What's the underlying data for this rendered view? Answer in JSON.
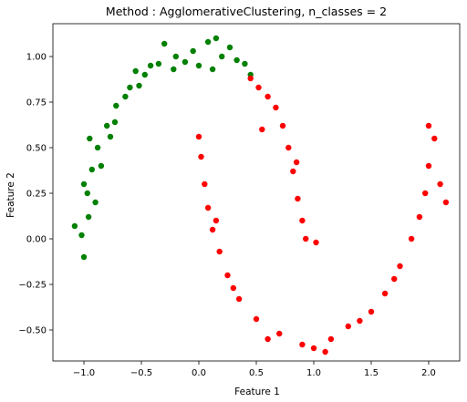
{
  "chart_data": {
    "type": "scatter",
    "title": "Method : AgglomerativeClustering, n_classes = 2",
    "xlabel": "Feature 1",
    "ylabel": "Feature 2",
    "xlim": [
      -1.27,
      2.27
    ],
    "ylim": [
      -0.67,
      1.18
    ],
    "xticks": [
      -1.0,
      -0.5,
      0.0,
      0.5,
      1.0,
      1.5,
      2.0
    ],
    "xtick_labels": [
      "−1.0",
      "−0.5",
      "0.0",
      "0.5",
      "1.0",
      "1.5",
      "2.0"
    ],
    "yticks": [
      -0.5,
      -0.25,
      0.0,
      0.25,
      0.5,
      0.75,
      1.0
    ],
    "ytick_labels": [
      "−0.50",
      "−0.25",
      "0.00",
      "0.25",
      "0.50",
      "0.75",
      "1.00"
    ],
    "grid": false,
    "legend": "none",
    "series": [
      {
        "color": "#008000",
        "points": [
          [
            -1.0,
            -0.1
          ],
          [
            -1.02,
            0.02
          ],
          [
            -0.96,
            0.12
          ],
          [
            -0.97,
            0.25
          ],
          [
            -0.93,
            0.38
          ],
          [
            -0.88,
            0.5
          ],
          [
            -0.8,
            0.62
          ],
          [
            -0.72,
            0.73
          ],
          [
            -0.6,
            0.83
          ],
          [
            -0.47,
            0.9
          ],
          [
            -0.35,
            0.96
          ],
          [
            -0.2,
            1.0
          ],
          [
            -0.05,
            1.03
          ],
          [
            0.08,
            1.08
          ],
          [
            0.2,
            1.0
          ],
          [
            0.33,
            0.98
          ],
          [
            0.45,
            0.9
          ],
          [
            -1.08,
            0.07
          ],
          [
            -0.9,
            0.2
          ],
          [
            -0.85,
            0.4
          ],
          [
            -0.77,
            0.56
          ],
          [
            -0.64,
            0.78
          ],
          [
            -0.52,
            0.84
          ],
          [
            -0.42,
            0.95
          ],
          [
            -0.3,
            1.07
          ],
          [
            -0.12,
            0.97
          ],
          [
            0.0,
            0.95
          ],
          [
            0.12,
            0.93
          ],
          [
            0.27,
            1.05
          ],
          [
            0.4,
            0.96
          ],
          [
            -1.0,
            0.3
          ],
          [
            -0.95,
            0.55
          ],
          [
            -0.73,
            0.64
          ],
          [
            -0.55,
            0.92
          ],
          [
            -0.22,
            0.93
          ],
          [
            0.15,
            1.1
          ]
        ]
      },
      {
        "color": "#ff0000",
        "points": [
          [
            0.45,
            0.88
          ],
          [
            0.52,
            0.83
          ],
          [
            0.6,
            0.78
          ],
          [
            0.67,
            0.72
          ],
          [
            0.73,
            0.62
          ],
          [
            0.78,
            0.5
          ],
          [
            0.82,
            0.37
          ],
          [
            0.86,
            0.22
          ],
          [
            0.9,
            0.1
          ],
          [
            0.93,
            0.0
          ],
          [
            1.02,
            -0.02
          ],
          [
            0.0,
            0.56
          ],
          [
            0.02,
            0.45
          ],
          [
            0.05,
            0.3
          ],
          [
            0.08,
            0.17
          ],
          [
            0.12,
            0.05
          ],
          [
            0.18,
            -0.07
          ],
          [
            0.25,
            -0.2
          ],
          [
            0.35,
            -0.33
          ],
          [
            0.5,
            -0.44
          ],
          [
            0.7,
            -0.52
          ],
          [
            0.9,
            -0.58
          ],
          [
            1.0,
            -0.6
          ],
          [
            1.15,
            -0.55
          ],
          [
            1.3,
            -0.48
          ],
          [
            1.5,
            -0.4
          ],
          [
            1.62,
            -0.3
          ],
          [
            1.75,
            -0.15
          ],
          [
            1.85,
            0.0
          ],
          [
            1.92,
            0.12
          ],
          [
            1.97,
            0.25
          ],
          [
            2.0,
            0.4
          ],
          [
            2.05,
            0.55
          ],
          [
            2.0,
            0.62
          ],
          [
            2.1,
            0.3
          ],
          [
            1.7,
            -0.22
          ],
          [
            1.4,
            -0.45
          ],
          [
            1.1,
            -0.62
          ],
          [
            0.6,
            -0.55
          ],
          [
            0.3,
            -0.27
          ],
          [
            0.15,
            0.1
          ],
          [
            0.55,
            0.6
          ],
          [
            0.85,
            0.42
          ],
          [
            2.15,
            0.2
          ]
        ]
      }
    ]
  }
}
